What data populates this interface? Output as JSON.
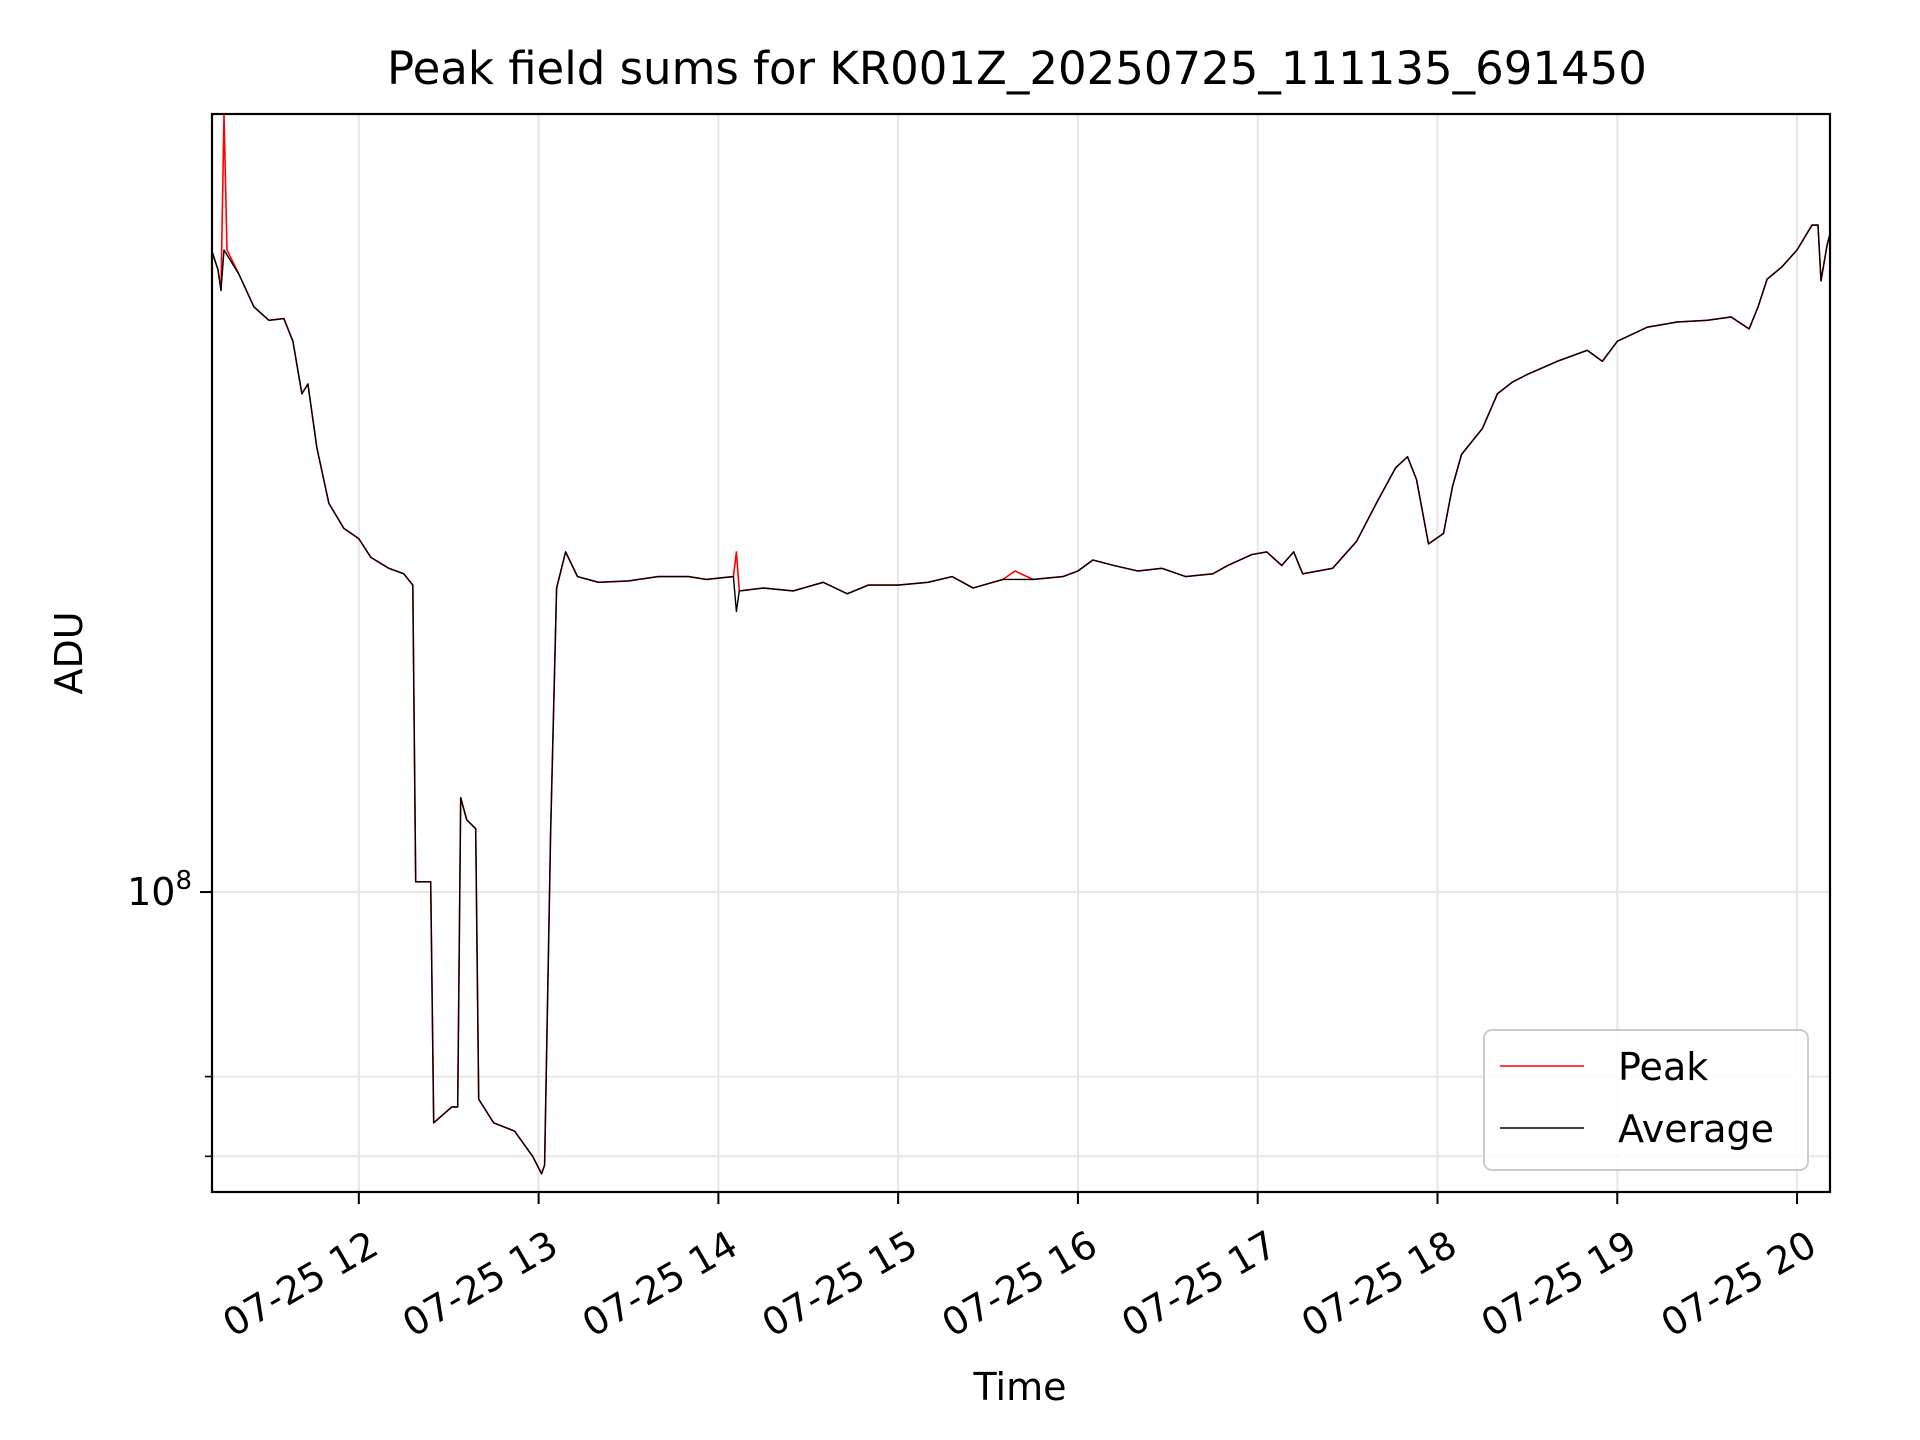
{
  "chart_data": {
    "type": "line",
    "title": "Peak field sums for KR001Z_20250725_111135_691450",
    "xlabel": "Time",
    "ylabel": "ADU",
    "x_ticks": [
      "07-25 12",
      "07-25 13",
      "07-25 14",
      "07-25 15",
      "07-25 16",
      "07-25 17",
      "07-25 18",
      "07-25 19",
      "07-25 20"
    ],
    "y_ticks": [
      {
        "value": 100000000,
        "label_base": "10",
        "label_exp": "8"
      }
    ],
    "y_scale": "log",
    "y_minor_ticks": [
      60000000,
      70000000
    ],
    "xlim": [
      "2025-07-25 11:11",
      "2025-07-25 20:11"
    ],
    "ylim": [
      56000000,
      450000000
    ],
    "grid": true,
    "legend": {
      "placement": "bottom-right",
      "entries": [
        {
          "label": "Peak",
          "color": "#ff0000"
        },
        {
          "label": "Average",
          "color": "#000000"
        }
      ]
    },
    "series": [
      {
        "name": "Peak",
        "color": "#ff0000",
        "points": [
          [
            "2025-07-25 11:11",
            345000000
          ],
          [
            "2025-07-25 11:13",
            333000000
          ],
          [
            "2025-07-25 11:14",
            320000000
          ],
          [
            "2025-07-25 11:15",
            450000000
          ],
          [
            "2025-07-25 11:16",
            346000000
          ],
          [
            "2025-07-25 11:20",
            330000000
          ],
          [
            "2025-07-25 11:25",
            310000000
          ],
          [
            "2025-07-25 11:30",
            302000000
          ],
          [
            "2025-07-25 11:35",
            303000000
          ],
          [
            "2025-07-25 11:38",
            290000000
          ],
          [
            "2025-07-25 11:41",
            262000000
          ],
          [
            "2025-07-25 11:43",
            267000000
          ],
          [
            "2025-07-25 11:46",
            236000000
          ],
          [
            "2025-07-25 11:50",
            212000000
          ],
          [
            "2025-07-25 11:55",
            202000000
          ],
          [
            "2025-07-25 12:00",
            198000000
          ],
          [
            "2025-07-25 12:04",
            191000000
          ],
          [
            "2025-07-25 12:10",
            187000000
          ],
          [
            "2025-07-25 12:15",
            185000000
          ],
          [
            "2025-07-25 12:18",
            181000000
          ],
          [
            "2025-07-25 12:19",
            102000000
          ],
          [
            "2025-07-25 12:24",
            102000000
          ],
          [
            "2025-07-25 12:25",
            64000000
          ],
          [
            "2025-07-25 12:31",
            66000000
          ],
          [
            "2025-07-25 12:33",
            66000000
          ],
          [
            "2025-07-25 12:34",
            120000000
          ],
          [
            "2025-07-25 12:36",
            115000000
          ],
          [
            "2025-07-25 12:39",
            113000000
          ],
          [
            "2025-07-25 12:40",
            67000000
          ],
          [
            "2025-07-25 12:45",
            64000000
          ],
          [
            "2025-07-25 12:52",
            63000000
          ],
          [
            "2025-07-25 12:58",
            60000000
          ],
          [
            "2025-07-25 13:01",
            58000000
          ],
          [
            "2025-07-25 13:02",
            59000000
          ],
          [
            "2025-07-25 13:04",
            112000000
          ],
          [
            "2025-07-25 13:06",
            180000000
          ],
          [
            "2025-07-25 13:09",
            193000000
          ],
          [
            "2025-07-25 13:13",
            184000000
          ],
          [
            "2025-07-25 13:20",
            182000000
          ],
          [
            "2025-07-25 13:30",
            182500000
          ],
          [
            "2025-07-25 13:40",
            184000000
          ],
          [
            "2025-07-25 13:50",
            184000000
          ],
          [
            "2025-07-25 13:56",
            183000000
          ],
          [
            "2025-07-25 14:05",
            184000000
          ],
          [
            "2025-07-25 14:06",
            193000000
          ],
          [
            "2025-07-25 14:07",
            179000000
          ],
          [
            "2025-07-25 14:15",
            180000000
          ],
          [
            "2025-07-25 14:25",
            179000000
          ],
          [
            "2025-07-25 14:35",
            182000000
          ],
          [
            "2025-07-25 14:43",
            178000000
          ],
          [
            "2025-07-25 14:50",
            181000000
          ],
          [
            "2025-07-25 15:00",
            181000000
          ],
          [
            "2025-07-25 15:10",
            182000000
          ],
          [
            "2025-07-25 15:18",
            184000000
          ],
          [
            "2025-07-25 15:25",
            180000000
          ],
          [
            "2025-07-25 15:35",
            183000000
          ],
          [
            "2025-07-25 15:39",
            186000000
          ],
          [
            "2025-07-25 15:45",
            183000000
          ],
          [
            "2025-07-25 15:55",
            184000000
          ],
          [
            "2025-07-25 16:00",
            186000000
          ],
          [
            "2025-07-25 16:05",
            190000000
          ],
          [
            "2025-07-25 16:12",
            188000000
          ],
          [
            "2025-07-25 16:20",
            186000000
          ],
          [
            "2025-07-25 16:28",
            187000000
          ],
          [
            "2025-07-25 16:36",
            184000000
          ],
          [
            "2025-07-25 16:45",
            185000000
          ],
          [
            "2025-07-25 16:50",
            188000000
          ],
          [
            "2025-07-25 16:58",
            192000000
          ],
          [
            "2025-07-25 17:03",
            193000000
          ],
          [
            "2025-07-25 17:08",
            188000000
          ],
          [
            "2025-07-25 17:12",
            193000000
          ],
          [
            "2025-07-25 17:15",
            185000000
          ],
          [
            "2025-07-25 17:25",
            187000000
          ],
          [
            "2025-07-25 17:33",
            197000000
          ],
          [
            "2025-07-25 17:40",
            213000000
          ],
          [
            "2025-07-25 17:46",
            227000000
          ],
          [
            "2025-07-25 17:50",
            232000000
          ],
          [
            "2025-07-25 17:53",
            222000000
          ],
          [
            "2025-07-25 17:57",
            196000000
          ],
          [
            "2025-07-25 18:02",
            200000000
          ],
          [
            "2025-07-25 18:05",
            219000000
          ],
          [
            "2025-07-25 18:08",
            233000000
          ],
          [
            "2025-07-25 18:15",
            245000000
          ],
          [
            "2025-07-25 18:20",
            262000000
          ],
          [
            "2025-07-25 18:25",
            268000000
          ],
          [
            "2025-07-25 18:30",
            272000000
          ],
          [
            "2025-07-25 18:40",
            279000000
          ],
          [
            "2025-07-25 18:50",
            285000000
          ],
          [
            "2025-07-25 18:55",
            279000000
          ],
          [
            "2025-07-25 19:00",
            290000000
          ],
          [
            "2025-07-25 19:10",
            298000000
          ],
          [
            "2025-07-25 19:20",
            301000000
          ],
          [
            "2025-07-25 19:30",
            302000000
          ],
          [
            "2025-07-25 19:38",
            304000000
          ],
          [
            "2025-07-25 19:44",
            297000000
          ],
          [
            "2025-07-25 19:47",
            310000000
          ],
          [
            "2025-07-25 19:50",
            327000000
          ],
          [
            "2025-07-25 19:55",
            335000000
          ],
          [
            "2025-07-25 20:00",
            346000000
          ],
          [
            "2025-07-25 20:05",
            363000000
          ],
          [
            "2025-07-25 20:07",
            363000000
          ],
          [
            "2025-07-25 20:08",
            326000000
          ],
          [
            "2025-07-25 20:10",
            349000000
          ],
          [
            "2025-07-25 20:11",
            357000000
          ]
        ]
      },
      {
        "name": "Average",
        "color": "#000000",
        "points": [
          [
            "2025-07-25 11:11",
            345000000
          ],
          [
            "2025-07-25 11:13",
            333000000
          ],
          [
            "2025-07-25 11:14",
            320000000
          ],
          [
            "2025-07-25 11:15",
            346000000
          ],
          [
            "2025-07-25 11:20",
            330000000
          ],
          [
            "2025-07-25 11:25",
            310000000
          ],
          [
            "2025-07-25 11:30",
            302000000
          ],
          [
            "2025-07-25 11:35",
            303000000
          ],
          [
            "2025-07-25 11:38",
            290000000
          ],
          [
            "2025-07-25 11:41",
            262000000
          ],
          [
            "2025-07-25 11:43",
            267000000
          ],
          [
            "2025-07-25 11:46",
            236000000
          ],
          [
            "2025-07-25 11:50",
            212000000
          ],
          [
            "2025-07-25 11:55",
            202000000
          ],
          [
            "2025-07-25 12:00",
            198000000
          ],
          [
            "2025-07-25 12:04",
            191000000
          ],
          [
            "2025-07-25 12:10",
            187000000
          ],
          [
            "2025-07-25 12:15",
            185000000
          ],
          [
            "2025-07-25 12:18",
            181000000
          ],
          [
            "2025-07-25 12:19",
            102000000
          ],
          [
            "2025-07-25 12:24",
            102000000
          ],
          [
            "2025-07-25 12:25",
            64000000
          ],
          [
            "2025-07-25 12:31",
            66000000
          ],
          [
            "2025-07-25 12:33",
            66000000
          ],
          [
            "2025-07-25 12:34",
            120000000
          ],
          [
            "2025-07-25 12:36",
            115000000
          ],
          [
            "2025-07-25 12:39",
            113000000
          ],
          [
            "2025-07-25 12:40",
            67000000
          ],
          [
            "2025-07-25 12:45",
            64000000
          ],
          [
            "2025-07-25 12:52",
            63000000
          ],
          [
            "2025-07-25 12:58",
            60000000
          ],
          [
            "2025-07-25 13:01",
            58000000
          ],
          [
            "2025-07-25 13:02",
            59000000
          ],
          [
            "2025-07-25 13:04",
            112000000
          ],
          [
            "2025-07-25 13:06",
            180000000
          ],
          [
            "2025-07-25 13:09",
            193000000
          ],
          [
            "2025-07-25 13:13",
            184000000
          ],
          [
            "2025-07-25 13:20",
            182000000
          ],
          [
            "2025-07-25 13:30",
            182500000
          ],
          [
            "2025-07-25 13:40",
            184000000
          ],
          [
            "2025-07-25 13:50",
            184000000
          ],
          [
            "2025-07-25 13:56",
            183000000
          ],
          [
            "2025-07-25 14:05",
            184000000
          ],
          [
            "2025-07-25 14:06",
            172000000
          ],
          [
            "2025-07-25 14:07",
            179000000
          ],
          [
            "2025-07-25 14:15",
            180000000
          ],
          [
            "2025-07-25 14:25",
            179000000
          ],
          [
            "2025-07-25 14:35",
            182000000
          ],
          [
            "2025-07-25 14:43",
            178000000
          ],
          [
            "2025-07-25 14:50",
            181000000
          ],
          [
            "2025-07-25 15:00",
            181000000
          ],
          [
            "2025-07-25 15:10",
            182000000
          ],
          [
            "2025-07-25 15:18",
            184000000
          ],
          [
            "2025-07-25 15:25",
            180000000
          ],
          [
            "2025-07-25 15:35",
            183000000
          ],
          [
            "2025-07-25 15:45",
            183000000
          ],
          [
            "2025-07-25 15:55",
            184000000
          ],
          [
            "2025-07-25 16:00",
            186000000
          ],
          [
            "2025-07-25 16:05",
            190000000
          ],
          [
            "2025-07-25 16:12",
            188000000
          ],
          [
            "2025-07-25 16:20",
            186000000
          ],
          [
            "2025-07-25 16:28",
            187000000
          ],
          [
            "2025-07-25 16:36",
            184000000
          ],
          [
            "2025-07-25 16:45",
            185000000
          ],
          [
            "2025-07-25 16:50",
            188000000
          ],
          [
            "2025-07-25 16:58",
            192000000
          ],
          [
            "2025-07-25 17:03",
            193000000
          ],
          [
            "2025-07-25 17:08",
            188000000
          ],
          [
            "2025-07-25 17:12",
            193000000
          ],
          [
            "2025-07-25 17:15",
            185000000
          ],
          [
            "2025-07-25 17:25",
            187000000
          ],
          [
            "2025-07-25 17:33",
            197000000
          ],
          [
            "2025-07-25 17:40",
            213000000
          ],
          [
            "2025-07-25 17:46",
            227000000
          ],
          [
            "2025-07-25 17:50",
            232000000
          ],
          [
            "2025-07-25 17:53",
            222000000
          ],
          [
            "2025-07-25 17:57",
            196000000
          ],
          [
            "2025-07-25 18:02",
            200000000
          ],
          [
            "2025-07-25 18:05",
            219000000
          ],
          [
            "2025-07-25 18:08",
            233000000
          ],
          [
            "2025-07-25 18:15",
            245000000
          ],
          [
            "2025-07-25 18:20",
            262000000
          ],
          [
            "2025-07-25 18:25",
            268000000
          ],
          [
            "2025-07-25 18:30",
            272000000
          ],
          [
            "2025-07-25 18:40",
            279000000
          ],
          [
            "2025-07-25 18:50",
            285000000
          ],
          [
            "2025-07-25 18:55",
            279000000
          ],
          [
            "2025-07-25 19:00",
            290000000
          ],
          [
            "2025-07-25 19:10",
            298000000
          ],
          [
            "2025-07-25 19:20",
            301000000
          ],
          [
            "2025-07-25 19:30",
            302000000
          ],
          [
            "2025-07-25 19:38",
            304000000
          ],
          [
            "2025-07-25 19:44",
            297000000
          ],
          [
            "2025-07-25 19:47",
            310000000
          ],
          [
            "2025-07-25 19:50",
            327000000
          ],
          [
            "2025-07-25 19:55",
            335000000
          ],
          [
            "2025-07-25 20:00",
            346000000
          ],
          [
            "2025-07-25 20:05",
            363000000
          ],
          [
            "2025-07-25 20:07",
            363000000
          ],
          [
            "2025-07-25 20:08",
            326000000
          ],
          [
            "2025-07-25 20:10",
            349000000
          ],
          [
            "2025-07-25 20:11",
            357000000
          ]
        ]
      }
    ]
  }
}
